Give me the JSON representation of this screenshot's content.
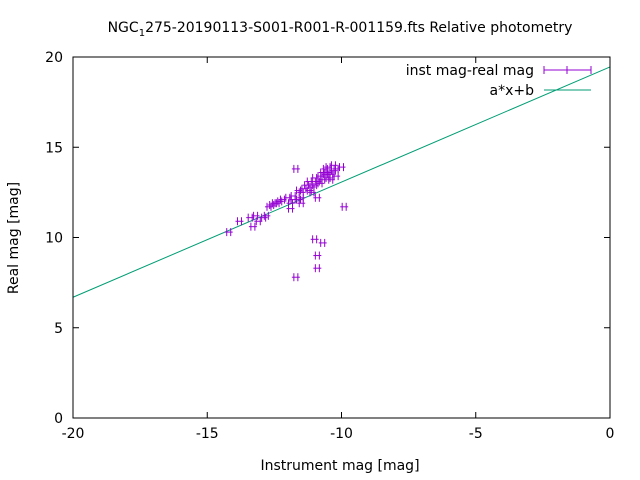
{
  "chart_data": {
    "type": "scatter",
    "title_main": "NGC",
    "title_sub": "1",
    "title_rest": "275-20190113-S001-R001-R-001159.fts Relative photometry",
    "xlabel": "Instrument mag [mag]",
    "ylabel": "Real mag [mag]",
    "xlim": [
      -20,
      0
    ],
    "ylim": [
      0,
      20
    ],
    "xticks": [
      -20,
      -15,
      -10,
      -5,
      0
    ],
    "yticks": [
      0,
      5,
      10,
      15,
      20
    ],
    "grid": false,
    "legend_position": "top-right",
    "series": [
      {
        "name": "inst mag-real mag",
        "kind": "points-errorbars",
        "color": "#9400d3",
        "points": [
          [
            -14.2,
            10.3
          ],
          [
            -13.8,
            10.9
          ],
          [
            -13.4,
            11.1
          ],
          [
            -13.3,
            10.6
          ],
          [
            -13.2,
            11.2
          ],
          [
            -13.1,
            10.9
          ],
          [
            -12.9,
            11.1
          ],
          [
            -12.8,
            11.2
          ],
          [
            -12.7,
            11.7
          ],
          [
            -12.6,
            11.8
          ],
          [
            -12.5,
            11.9
          ],
          [
            -12.4,
            11.9
          ],
          [
            -12.3,
            12.0
          ],
          [
            -12.2,
            12.1
          ],
          [
            -12.0,
            12.2
          ],
          [
            -11.9,
            11.9
          ],
          [
            -11.9,
            11.6
          ],
          [
            -11.8,
            12.1
          ],
          [
            -11.8,
            12.3
          ],
          [
            -11.7,
            13.8
          ],
          [
            -11.7,
            7.8
          ],
          [
            -11.6,
            12.1
          ],
          [
            -11.6,
            12.6
          ],
          [
            -11.5,
            12.2
          ],
          [
            -11.5,
            11.9
          ],
          [
            -11.5,
            12.5
          ],
          [
            -11.4,
            12.7
          ],
          [
            -11.3,
            12.9
          ],
          [
            -11.2,
            13.1
          ],
          [
            -11.2,
            12.6
          ],
          [
            -11.1,
            12.5
          ],
          [
            -11.1,
            12.8
          ],
          [
            -11.0,
            13.3
          ],
          [
            -11.0,
            12.9
          ],
          [
            -11.0,
            9.9
          ],
          [
            -10.9,
            13.1
          ],
          [
            -10.9,
            12.2
          ],
          [
            -10.9,
            9.0
          ],
          [
            -10.9,
            8.3
          ],
          [
            -10.8,
            13.4
          ],
          [
            -10.8,
            13.0
          ],
          [
            -10.7,
            13.6
          ],
          [
            -10.7,
            13.2
          ],
          [
            -10.7,
            9.7
          ],
          [
            -10.6,
            13.5
          ],
          [
            -10.6,
            13.8
          ],
          [
            -10.5,
            13.3
          ],
          [
            -10.5,
            13.6
          ],
          [
            -10.5,
            13.9
          ],
          [
            -10.4,
            13.5
          ],
          [
            -10.4,
            13.2
          ],
          [
            -10.3,
            13.7
          ],
          [
            -10.3,
            14.0
          ],
          [
            -10.2,
            13.8
          ],
          [
            -10.2,
            13.4
          ],
          [
            -10.0,
            13.9
          ],
          [
            -9.9,
            11.7
          ]
        ]
      },
      {
        "name": "a*x+b",
        "kind": "line",
        "color": "#009e73",
        "a": 0.638,
        "b": 19.45
      }
    ]
  }
}
